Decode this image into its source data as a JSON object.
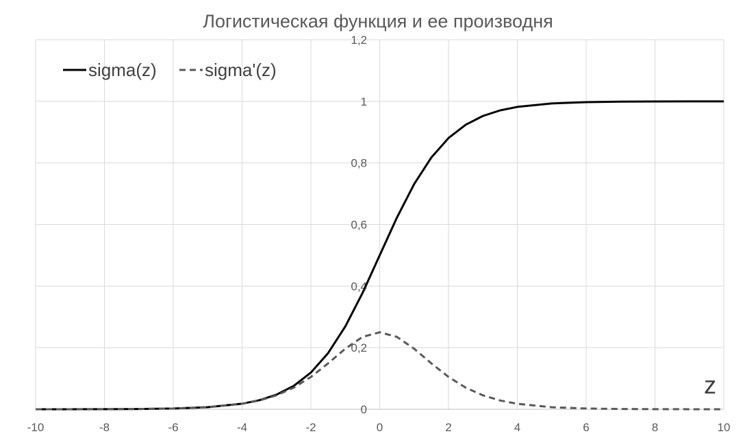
{
  "chart_data": {
    "type": "line",
    "title": "Логистическая функция и ее производня",
    "xlabel": "z",
    "ylabel": "",
    "xlim": [
      -10,
      10
    ],
    "ylim": [
      0,
      1.2
    ],
    "xticks": [
      -10,
      -8,
      -6,
      -4,
      -2,
      0,
      2,
      4,
      6,
      8,
      10
    ],
    "yticks": [
      0,
      0.2,
      0.4,
      0.6,
      0.8,
      1,
      1.2
    ],
    "ytick_labels": [
      "0",
      "0,2",
      "0,4",
      "0,6",
      "0,8",
      "1",
      "1,2"
    ],
    "grid": true,
    "legend_position": "top-left",
    "series": [
      {
        "name": "sigma(z)",
        "style": "solid",
        "color": "#000000",
        "x": [
          -10,
          -9,
          -8,
          -7,
          -6,
          -5,
          -4,
          -3.5,
          -3,
          -2.5,
          -2,
          -1.5,
          -1,
          -0.5,
          0,
          0.5,
          1,
          1.5,
          2,
          2.5,
          3,
          3.5,
          4,
          5,
          6,
          7,
          8,
          9,
          10
        ],
        "values": [
          4.54e-05,
          0.000123,
          0.000335,
          0.000911,
          0.00247,
          0.00669,
          0.018,
          0.0293,
          0.0474,
          0.0759,
          0.1192,
          0.1824,
          0.2689,
          0.3775,
          0.5,
          0.6225,
          0.7311,
          0.8176,
          0.8808,
          0.9241,
          0.9526,
          0.9707,
          0.982,
          0.9933,
          0.9975,
          0.9991,
          0.9997,
          0.9999,
          1.0
        ]
      },
      {
        "name": "sigma'(z)",
        "style": "dashed",
        "color": "#595959",
        "x": [
          -10,
          -9,
          -8,
          -7,
          -6,
          -5,
          -4,
          -3.5,
          -3,
          -2.5,
          -2,
          -1.5,
          -1,
          -0.5,
          0,
          0.5,
          1,
          1.5,
          2,
          2.5,
          3,
          3.5,
          4,
          5,
          6,
          7,
          8,
          9,
          10
        ],
        "values": [
          4.54e-05,
          0.000123,
          0.000335,
          0.00091,
          0.00247,
          0.00665,
          0.0177,
          0.0285,
          0.0452,
          0.0701,
          0.105,
          0.1491,
          0.1966,
          0.235,
          0.25,
          0.235,
          0.1966,
          0.1491,
          0.105,
          0.0701,
          0.0452,
          0.0285,
          0.0177,
          0.00665,
          0.00247,
          0.00091,
          0.000335,
          0.000123,
          4.54e-05
        ]
      }
    ]
  }
}
